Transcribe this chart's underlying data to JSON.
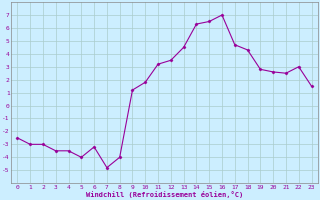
{
  "x": [
    0,
    1,
    2,
    3,
    4,
    5,
    6,
    7,
    8,
    9,
    10,
    11,
    12,
    13,
    14,
    15,
    16,
    17,
    18,
    19,
    20,
    21,
    22,
    23
  ],
  "y": [
    -2.5,
    -3.0,
    -3.0,
    -3.5,
    -3.5,
    -4.0,
    -3.2,
    -4.8,
    -4.0,
    1.2,
    1.8,
    3.2,
    3.5,
    4.5,
    6.3,
    6.5,
    7.0,
    4.7,
    4.3,
    2.8,
    2.6,
    2.5,
    3.0,
    1.5
  ],
  "line_color": "#990099",
  "marker": "D",
  "marker_size": 1.5,
  "line_width": 0.8,
  "bg_color": "#cceeff",
  "grid_color": "#aacccc",
  "xlabel": "Windchill (Refroidissement éolien,°C)",
  "xlabel_color": "#990099",
  "tick_color": "#990099",
  "ylim": [
    -6,
    8
  ],
  "xlim": [
    -0.5,
    23.5
  ],
  "yticks": [
    -5,
    -4,
    -3,
    -2,
    -1,
    0,
    1,
    2,
    3,
    4,
    5,
    6,
    7
  ],
  "xticks": [
    0,
    1,
    2,
    3,
    4,
    5,
    6,
    7,
    8,
    9,
    10,
    11,
    12,
    13,
    14,
    15,
    16,
    17,
    18,
    19,
    20,
    21,
    22,
    23
  ],
  "tick_fontsize": 4.5,
  "xlabel_fontsize": 5.0,
  "font_family": "monospace"
}
